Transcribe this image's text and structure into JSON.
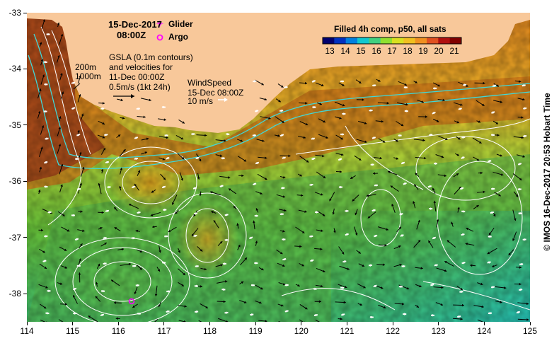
{
  "header": {
    "date": "15-Dec-2017",
    "time": "08:00Z"
  },
  "legend": {
    "glider_label": "Glider",
    "argo_label": "Argo",
    "glider_color": "#ff33ff",
    "argo_color": "#ff00ff"
  },
  "gsla": {
    "line1": "GSLA (0.1m contours)",
    "line2": "and velocities for",
    "line3": "11-Dec 00:00Z",
    "scale": "0.5m/s (1kt 24h)"
  },
  "isobaths": {
    "shallow": "200m",
    "deep": "1000m"
  },
  "wind": {
    "line1": "WindSpeed",
    "line2": "15-Dec 08:00Z",
    "scale": "10 m/s"
  },
  "colorbar": {
    "title": "Filled 4h comp, p50, all sats",
    "ticks": [
      "13",
      "14",
      "15",
      "16",
      "17",
      "18",
      "19",
      "20",
      "21"
    ],
    "colors": [
      "#00006e",
      "#0030c0",
      "#0080e0",
      "#10c8d0",
      "#40d080",
      "#90e030",
      "#d8e020",
      "#f0c020",
      "#f09020",
      "#e05020",
      "#b01010",
      "#800000"
    ]
  },
  "axes": {
    "x_ticks": [
      "114",
      "115",
      "116",
      "117",
      "118",
      "119",
      "120",
      "121",
      "122",
      "123",
      "124",
      "125"
    ],
    "y_ticks": [
      "-33",
      "-34",
      "-35",
      "-36",
      "-37",
      "-38"
    ],
    "x_range": [
      114,
      125
    ],
    "y_range": [
      -33,
      -38.5
    ]
  },
  "side_caption": "© IMOS 16-Dec-2017 20:53 Hobart Time",
  "map": {
    "land_color": "#f8c89a",
    "isobath_color": "#40d8d8",
    "contour_color": "#ffffff"
  }
}
